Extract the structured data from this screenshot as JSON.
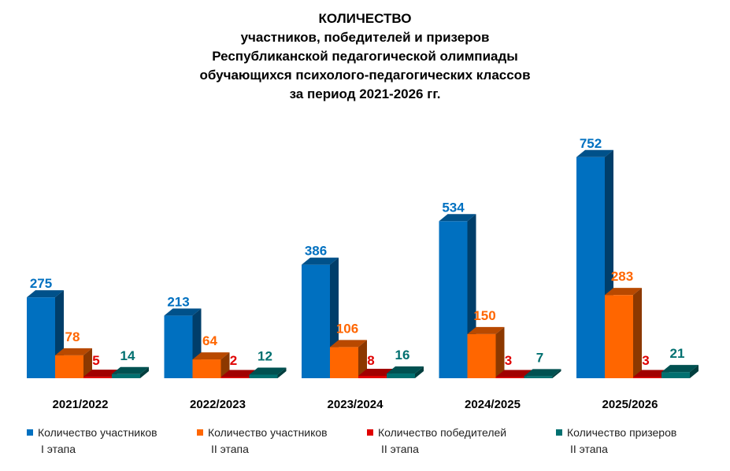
{
  "title": {
    "line1": "КОЛИЧЕСТВО",
    "line2": "участников, победителей и призеров",
    "line3": "Республиканской педагогической олимпиады",
    "line4": "обучающихся психолого-педагогических классов",
    "line5": "за период 2021-2026 гг."
  },
  "legend": [
    {
      "line1": "Количество участников",
      "line2": "I этапа"
    },
    {
      "line1": "Количество участников",
      "line2": "II этапа"
    },
    {
      "line1": "Количество победителей",
      "line2": "II этапа"
    },
    {
      "line1": "Количество призеров",
      "line2": "II этапа"
    }
  ],
  "chart_data": {
    "type": "bar",
    "style": "3d-clustered-column",
    "categories": [
      "2021/2022",
      "2022/2023",
      "2023/2024",
      "2024/2025",
      "2025/2026"
    ],
    "series": [
      {
        "name": "Количество участников I этапа",
        "color": "#0070C0",
        "values": [
          275,
          213,
          386,
          534,
          752
        ]
      },
      {
        "name": "Количество участников II этапа",
        "color": "#FF6600",
        "values": [
          78,
          64,
          106,
          150,
          283
        ]
      },
      {
        "name": "Количество победителей II этапа",
        "color": "#E00000",
        "values": [
          5,
          2,
          8,
          3,
          3
        ]
      },
      {
        "name": "Количество призеров II этапа",
        "color": "#007070",
        "values": [
          14,
          12,
          16,
          7,
          21
        ]
      }
    ],
    "data_labels": true,
    "grid": false,
    "legend_position": "bottom",
    "ylim": [
      0,
      800
    ]
  }
}
